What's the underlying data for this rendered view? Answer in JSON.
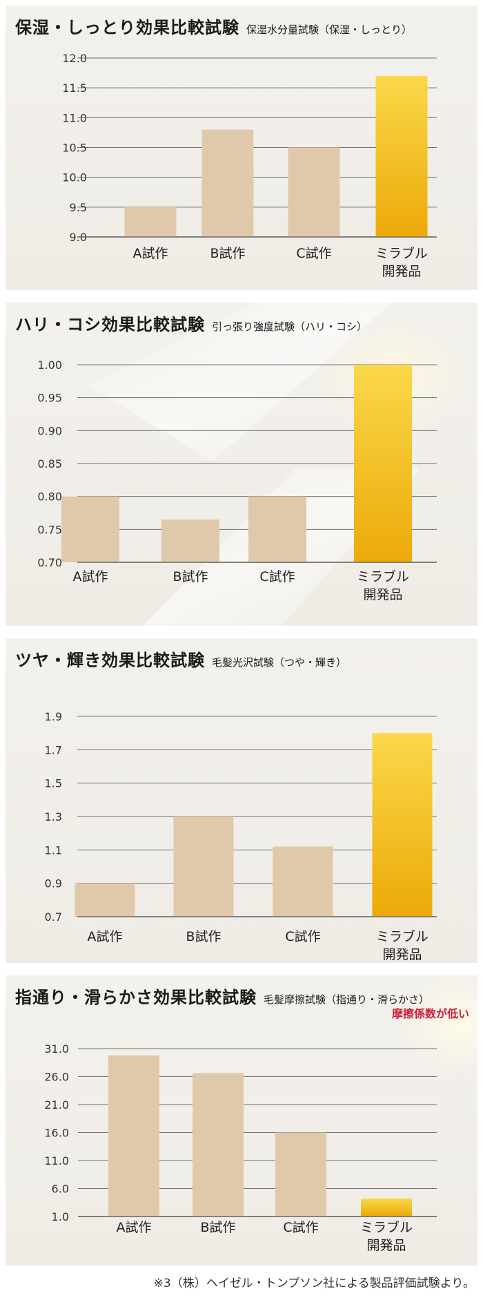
{
  "chart_data": [
    {
      "type": "bar",
      "title": "保湿・しっとり効果比較試験",
      "subtitle": "保湿水分量試験（保湿・しっとり）",
      "categories": [
        "A試作",
        "B試作",
        "C試作",
        "ミラブル\n開発品"
      ],
      "values": [
        9.5,
        10.8,
        10.5,
        11.7
      ],
      "yticks": [
        "9.0",
        "9.5",
        "10.0",
        "10.5",
        "11.0",
        "11.5",
        "12.0"
      ],
      "ylim": [
        9.0,
        12.0
      ],
      "highlight_index": 3,
      "note": ""
    },
    {
      "type": "bar",
      "title": "ハリ・コシ効果比較試験",
      "subtitle": "引っ張り強度試験（ハリ・コシ）",
      "categories": [
        "A試作",
        "B試作",
        "C試作",
        "ミラブル\n開発品"
      ],
      "values": [
        0.8,
        0.765,
        0.8,
        1.0
      ],
      "yticks": [
        "0.70",
        "0.75",
        "0.80",
        "0.85",
        "0.90",
        "0.95",
        "1.00"
      ],
      "ylim": [
        0.7,
        1.0
      ],
      "highlight_index": 3,
      "note": ""
    },
    {
      "type": "bar",
      "title": "ツヤ・輝き効果比較試験",
      "subtitle": "毛髪光沢試験（つや・輝き）",
      "categories": [
        "A試作",
        "B試作",
        "C試作",
        "ミラブル\n開発品"
      ],
      "values": [
        0.9,
        1.3,
        1.12,
        1.8
      ],
      "yticks": [
        "0.7",
        "0.9",
        "1.1",
        "1.3",
        "1.5",
        "1.7",
        "1.9"
      ],
      "ylim": [
        0.7,
        1.9
      ],
      "highlight_index": 3,
      "note": ""
    },
    {
      "type": "bar",
      "title": "指通り・滑らかさ効果比較試験",
      "subtitle": "毛髪摩擦試験（指通り・滑らかさ）",
      "categories": [
        "A試作",
        "B試作",
        "C試作",
        "ミラブル\n開発品"
      ],
      "values": [
        29.8,
        26.6,
        16.0,
        4.2
      ],
      "yticks": [
        "1.0",
        "6.0",
        "11.0",
        "16.0",
        "21.0",
        "26.0",
        "31.0"
      ],
      "ylim": [
        1.0,
        31.0
      ],
      "highlight_index": 3,
      "note": "摩擦係数が低い"
    }
  ],
  "footnote": "※3（株）ヘイゼル・トンプソン社による製品評価試験より。",
  "colors": {
    "bar": "#e0c9aa",
    "highlight_top": "#fad84a",
    "highlight_bottom": "#ecaa08",
    "axis": "#6f6f6f",
    "note": "#d0203a"
  }
}
